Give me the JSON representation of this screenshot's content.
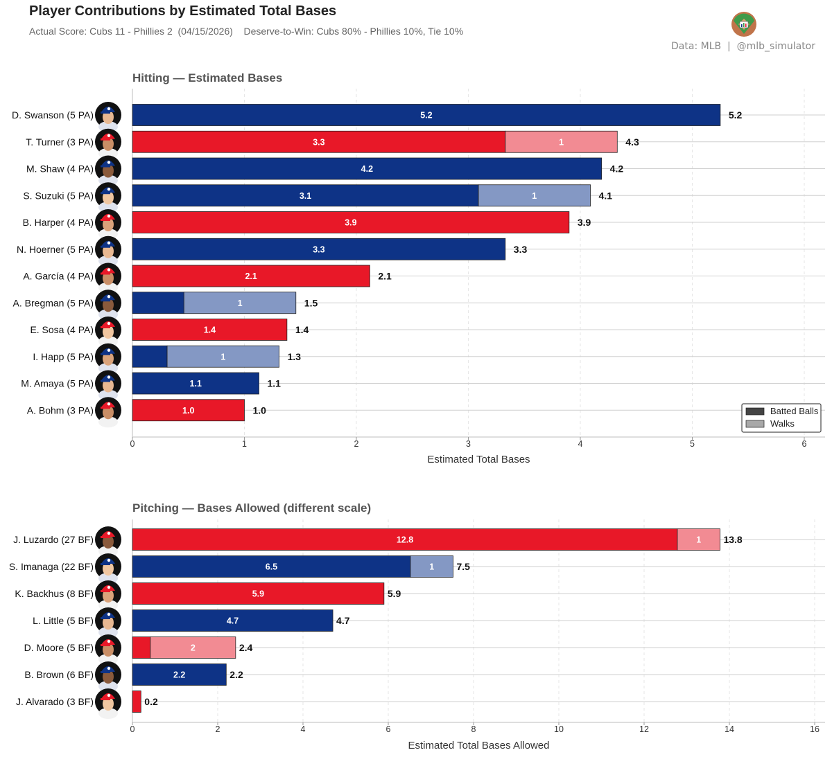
{
  "header": {
    "title": "Player Contributions by Estimated Total Bases",
    "subtitle": "Actual Score: Cubs 11 - Phillies 2  (04/15/2026)    Deserve-to-Win: Cubs 80% - Phillies 10%, Tie 10%",
    "credit": "Data: MLB  |  @mlb_simulator"
  },
  "colors": {
    "cubs_dark": "#0E3386",
    "cubs_light": "#8498C4",
    "phillies_dark": "#E81828",
    "phillies_light": "#F28B93"
  },
  "legend": {
    "batted_label": "Batted Balls",
    "walks_label": "Walks",
    "batted_color": "#444444",
    "walks_color": "#a8a8a8"
  },
  "chart_data": [
    {
      "type": "bar",
      "orientation": "horizontal",
      "stacked": true,
      "title": "Hitting — Estimated Bases",
      "xlabel": "Estimated Total Bases",
      "xlim": [
        0,
        6.2
      ],
      "xticks": [
        0,
        1,
        2,
        3,
        4,
        5,
        6
      ],
      "grid": true,
      "legend": "bottom-right",
      "series_names": [
        "Batted Balls",
        "Walks"
      ],
      "rows": [
        {
          "label": "D. Swanson  (5 PA)",
          "team": "cubs",
          "batted": 5.25,
          "walks": 0,
          "batted_text": "5.2",
          "walks_text": "",
          "total_text": "5.2"
        },
        {
          "label": "T. Turner  (3 PA)",
          "team": "phillies",
          "batted": 3.33,
          "walks": 1,
          "batted_text": "3.3",
          "walks_text": "1",
          "total_text": "4.3"
        },
        {
          "label": "M. Shaw  (4 PA)",
          "team": "cubs",
          "batted": 4.19,
          "walks": 0,
          "batted_text": "4.2",
          "walks_text": "",
          "total_text": "4.2"
        },
        {
          "label": "S. Suzuki  (5 PA)",
          "team": "cubs",
          "batted": 3.09,
          "walks": 1,
          "batted_text": "3.1",
          "walks_text": "1",
          "total_text": "4.1"
        },
        {
          "label": "B. Harper  (4 PA)",
          "team": "phillies",
          "batted": 3.9,
          "walks": 0,
          "batted_text": "3.9",
          "walks_text": "",
          "total_text": "3.9"
        },
        {
          "label": "N. Hoerner  (5 PA)",
          "team": "cubs",
          "batted": 3.33,
          "walks": 0,
          "batted_text": "3.3",
          "walks_text": "",
          "total_text": "3.3"
        },
        {
          "label": "A. García  (4 PA)",
          "team": "phillies",
          "batted": 2.12,
          "walks": 0,
          "batted_text": "2.1",
          "walks_text": "",
          "total_text": "2.1"
        },
        {
          "label": "A. Bregman  (5 PA)",
          "team": "cubs",
          "batted": 0.46,
          "walks": 1,
          "batted_text": "",
          "walks_text": "1",
          "total_text": "1.5"
        },
        {
          "label": "E. Sosa  (4 PA)",
          "team": "phillies",
          "batted": 1.38,
          "walks": 0,
          "batted_text": "1.4",
          "walks_text": "",
          "total_text": "1.4"
        },
        {
          "label": "I. Happ  (5 PA)",
          "team": "cubs",
          "batted": 0.31,
          "walks": 1,
          "batted_text": "",
          "walks_text": "1",
          "total_text": "1.3"
        },
        {
          "label": "M. Amaya  (5 PA)",
          "team": "cubs",
          "batted": 1.13,
          "walks": 0,
          "batted_text": "1.1",
          "walks_text": "",
          "total_text": "1.1"
        },
        {
          "label": "A. Bohm  (3 PA)",
          "team": "phillies",
          "batted": 1.0,
          "walks": 0,
          "batted_text": "1.0",
          "walks_text": "",
          "total_text": "1.0"
        }
      ]
    },
    {
      "type": "bar",
      "orientation": "horizontal",
      "stacked": true,
      "title": "Pitching — Bases Allowed  (different scale)",
      "xlabel": "Estimated Total Bases Allowed",
      "xlim": [
        0,
        16.2
      ],
      "xticks": [
        0,
        2,
        4,
        6,
        8,
        10,
        12,
        14,
        16
      ],
      "grid": true,
      "legend": "none",
      "series_names": [
        "Batted Balls",
        "Walks"
      ],
      "rows": [
        {
          "label": "J. Luzardo  (27 BF)",
          "team": "phillies",
          "batted": 12.78,
          "walks": 1,
          "batted_text": "12.8",
          "walks_text": "1",
          "total_text": "13.8"
        },
        {
          "label": "S. Imanaga  (22 BF)",
          "team": "cubs",
          "batted": 6.52,
          "walks": 1,
          "batted_text": "6.5",
          "walks_text": "1",
          "total_text": "7.5"
        },
        {
          "label": "K. Backhus  (8 BF)",
          "team": "phillies",
          "batted": 5.9,
          "walks": 0,
          "batted_text": "5.9",
          "walks_text": "",
          "total_text": "5.9"
        },
        {
          "label": "L. Little  (5 BF)",
          "team": "cubs",
          "batted": 4.7,
          "walks": 0,
          "batted_text": "4.7",
          "walks_text": "",
          "total_text": "4.7"
        },
        {
          "label": "D. Moore  (5 BF)",
          "team": "phillies",
          "batted": 0.42,
          "walks": 2,
          "batted_text": "",
          "walks_text": "2",
          "total_text": "2.4"
        },
        {
          "label": "B. Brown  (6 BF)",
          "team": "cubs",
          "batted": 2.2,
          "walks": 0,
          "batted_text": "2.2",
          "walks_text": "",
          "total_text": "2.2"
        },
        {
          "label": "J. Alvarado  (3 BF)",
          "team": "phillies",
          "batted": 0.2,
          "walks": 0,
          "batted_text": "",
          "walks_text": "",
          "total_text": "0.2"
        }
      ]
    }
  ]
}
